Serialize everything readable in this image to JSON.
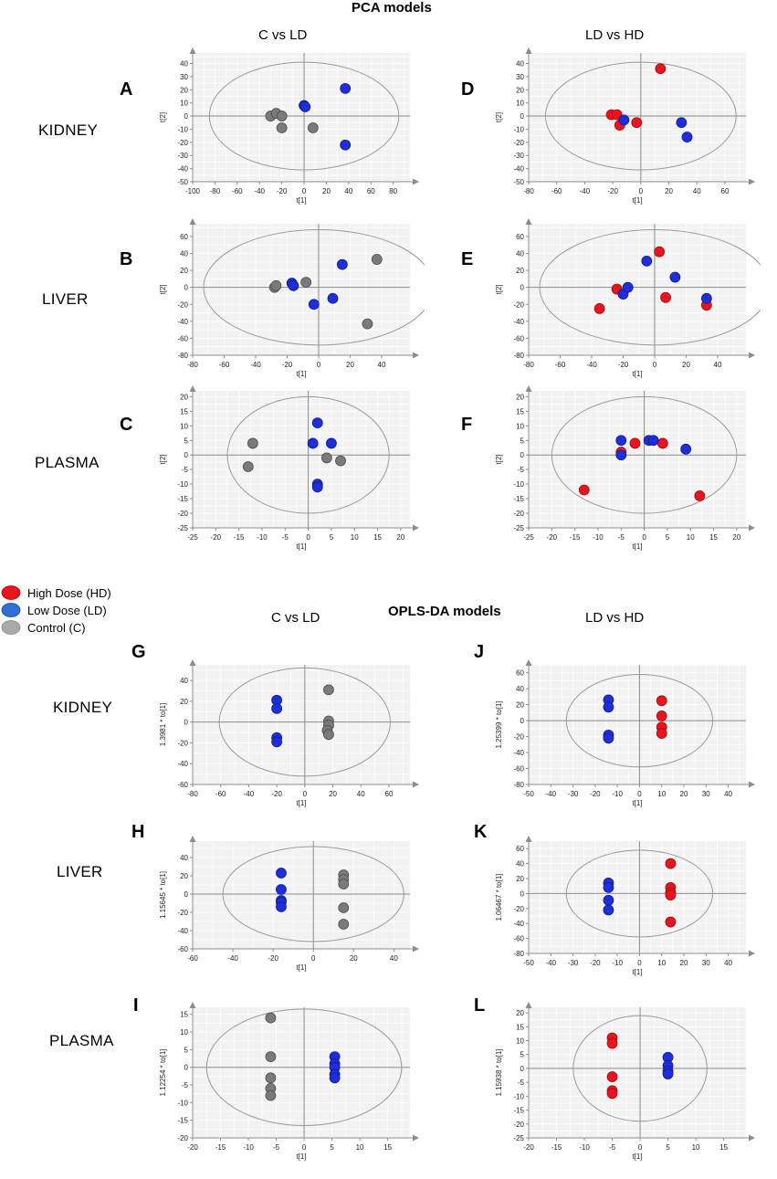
{
  "headers": {
    "pca": "PCA models",
    "oplsda": "OPLS-DA models",
    "col_left": "C vs LD",
    "col_right": "LD vs HD"
  },
  "rows": [
    "KIDNEY",
    "LIVER",
    "PLASMA"
  ],
  "legend": [
    {
      "label": "High Dose (HD)",
      "color": "#e8141e"
    },
    {
      "label": "Low Dose (LD)",
      "color": "#1e2ed8"
    },
    {
      "label": "Control (C)",
      "color": "#7a7a7a"
    }
  ],
  "colors": {
    "HD": "#e8141e",
    "LD": "#1e2ed8",
    "C": "#7a7a7a",
    "plot_bg": "#f2f2f2",
    "grid": "#ffffff",
    "axis": "#8c8c8c"
  },
  "chart_data": [
    {
      "id": "A",
      "type": "scatter",
      "model": "PCA",
      "tissue": "KIDNEY",
      "comparison": "C vs LD",
      "xlabel": "t[1]",
      "ylabel": "t[2]",
      "xlim": [
        -100,
        95
      ],
      "ylim": [
        -50,
        48
      ],
      "xticks": [
        -100,
        -80,
        -60,
        -40,
        -20,
        0,
        20,
        40,
        60,
        80
      ],
      "yticks": [
        -50,
        -40,
        -30,
        -20,
        -10,
        0,
        10,
        20,
        30,
        40
      ],
      "ellipse": {
        "rx": 85,
        "ry": 41
      },
      "series": [
        {
          "name": "Control (C)",
          "group": "C",
          "points": [
            [
              -30,
              0
            ],
            [
              -25,
              2
            ],
            [
              -20,
              0
            ],
            [
              -20,
              -9
            ],
            [
              8,
              -9
            ]
          ]
        },
        {
          "name": "Low Dose (LD)",
          "group": "LD",
          "points": [
            [
              0,
              8
            ],
            [
              1,
              7
            ],
            [
              37,
              21
            ],
            [
              37,
              -22
            ]
          ]
        }
      ]
    },
    {
      "id": "D",
      "type": "scatter",
      "model": "PCA",
      "tissue": "KIDNEY",
      "comparison": "LD vs HD",
      "xlabel": "t[1]",
      "ylabel": "t[2]",
      "xlim": [
        -80,
        75
      ],
      "ylim": [
        -50,
        48
      ],
      "xticks": [
        -80,
        -60,
        -40,
        -20,
        0,
        20,
        40,
        60
      ],
      "yticks": [
        -50,
        -40,
        -30,
        -20,
        -10,
        0,
        10,
        20,
        30,
        40
      ],
      "ellipse": {
        "rx": 68,
        "ry": 41
      },
      "series": [
        {
          "name": "High Dose (HD)",
          "group": "HD",
          "points": [
            [
              -21,
              1
            ],
            [
              -17,
              1
            ],
            [
              -15,
              -7
            ],
            [
              -3,
              -5
            ],
            [
              14,
              36
            ]
          ]
        },
        {
          "name": "Low Dose (LD)",
          "group": "LD",
          "points": [
            [
              -12,
              -3
            ],
            [
              29,
              -5
            ],
            [
              33,
              -16
            ]
          ]
        }
      ]
    },
    {
      "id": "B",
      "type": "scatter",
      "model": "PCA",
      "tissue": "LIVER",
      "comparison": "C vs LD",
      "xlabel": "t[1]",
      "ylabel": "t[2]",
      "xlim": [
        -80,
        58
      ],
      "ylim": [
        -80,
        75
      ],
      "xticks": [
        -80,
        -60,
        -40,
        -20,
        0,
        20,
        40
      ],
      "yticks": [
        -80,
        -60,
        -40,
        -20,
        0,
        20,
        40,
        60
      ],
      "ellipse": {
        "rx": 73,
        "ry": 68
      },
      "series": [
        {
          "name": "Control (C)",
          "group": "C",
          "points": [
            [
              -28,
              0
            ],
            [
              -27,
              2
            ],
            [
              -8,
              6
            ],
            [
              37,
              33
            ],
            [
              31,
              -43
            ]
          ]
        },
        {
          "name": "Low Dose (LD)",
          "group": "LD",
          "points": [
            [
              -17,
              5
            ],
            [
              -16,
              2
            ],
            [
              -3,
              -20
            ],
            [
              9,
              -13
            ],
            [
              15,
              27
            ]
          ]
        }
      ]
    },
    {
      "id": "E",
      "type": "scatter",
      "model": "PCA",
      "tissue": "LIVER",
      "comparison": "LD vs HD",
      "xlabel": "t[1]",
      "ylabel": "t[2]",
      "xlim": [
        -80,
        58
      ],
      "ylim": [
        -80,
        75
      ],
      "xticks": [
        -80,
        -60,
        -40,
        -20,
        0,
        20,
        40
      ],
      "yticks": [
        -80,
        -60,
        -40,
        -20,
        0,
        20,
        40,
        60
      ],
      "ellipse": {
        "rx": 73,
        "ry": 68
      },
      "series": [
        {
          "name": "High Dose (HD)",
          "group": "HD",
          "points": [
            [
              -35,
              -25
            ],
            [
              -24,
              -2
            ],
            [
              3,
              42
            ],
            [
              7,
              -12
            ],
            [
              33,
              -21
            ]
          ]
        },
        {
          "name": "Low Dose (LD)",
          "group": "LD",
          "points": [
            [
              -20,
              -8
            ],
            [
              -17,
              0
            ],
            [
              -5,
              31
            ],
            [
              13,
              12
            ],
            [
              33,
              -13
            ]
          ]
        }
      ]
    },
    {
      "id": "C",
      "type": "scatter",
      "model": "PCA",
      "tissue": "PLASMA",
      "comparison": "C vs LD",
      "xlabel": "t[1]",
      "ylabel": "t[2]",
      "xlim": [
        -25,
        22
      ],
      "ylim": [
        -25,
        22
      ],
      "xticks": [
        -25,
        -20,
        -15,
        -10,
        -5,
        0,
        5,
        10,
        15,
        20
      ],
      "yticks": [
        -25,
        -20,
        -15,
        -10,
        -5,
        0,
        5,
        10,
        15,
        20
      ],
      "ellipse": {
        "rx": 17.5,
        "ry": 20
      },
      "series": [
        {
          "name": "Control (C)",
          "group": "C",
          "points": [
            [
              -12,
              4
            ],
            [
              -13,
              -4
            ],
            [
              4,
              -1
            ],
            [
              7,
              -2
            ]
          ]
        },
        {
          "name": "Low Dose (LD)",
          "group": "LD",
          "points": [
            [
              2,
              11
            ],
            [
              1,
              4
            ],
            [
              5,
              4
            ],
            [
              2,
              -10
            ],
            [
              2,
              -11
            ]
          ]
        }
      ]
    },
    {
      "id": "F",
      "type": "scatter",
      "model": "PCA",
      "tissue": "PLASMA",
      "comparison": "LD vs HD",
      "xlabel": "t[1]",
      "ylabel": "t[2]",
      "xlim": [
        -25,
        22
      ],
      "ylim": [
        -25,
        22
      ],
      "xticks": [
        -25,
        -20,
        -15,
        -10,
        -5,
        0,
        5,
        10,
        15,
        20
      ],
      "yticks": [
        -25,
        -20,
        -15,
        -10,
        -5,
        0,
        5,
        10,
        15,
        20
      ],
      "ellipse": {
        "rx": 20,
        "ry": 20
      },
      "series": [
        {
          "name": "High Dose (HD)",
          "group": "HD",
          "points": [
            [
              -13,
              -12
            ],
            [
              -5,
              1
            ],
            [
              -2,
              4
            ],
            [
              4,
              4
            ],
            [
              12,
              -14
            ]
          ]
        },
        {
          "name": "Low Dose (LD)",
          "group": "LD",
          "points": [
            [
              -5,
              5
            ],
            [
              -5,
              0
            ],
            [
              1,
              5
            ],
            [
              2,
              5
            ],
            [
              9,
              2
            ]
          ]
        }
      ]
    },
    {
      "id": "G",
      "type": "scatter",
      "model": "OPLS-DA",
      "tissue": "KIDNEY",
      "comparison": "C vs LD",
      "xlabel": "t[1]",
      "ylabel": "1.3981 * to[1]",
      "xlim": [
        -80,
        75
      ],
      "ylim": [
        -60,
        55
      ],
      "xticks": [
        -80,
        -60,
        -40,
        -20,
        0,
        20,
        40,
        60
      ],
      "yticks": [
        -60,
        -40,
        -20,
        0,
        20,
        40
      ],
      "ellipse": {
        "rx": 61,
        "ry": 52
      },
      "series": [
        {
          "name": "Control (C)",
          "group": "C",
          "points": [
            [
              17,
              31
            ],
            [
              17,
              1
            ],
            [
              17,
              -3
            ],
            [
              16,
              -8
            ],
            [
              17,
              -12
            ]
          ]
        },
        {
          "name": "Low Dose (LD)",
          "group": "LD",
          "points": [
            [
              -20,
              21
            ],
            [
              -20,
              13
            ],
            [
              -20,
              -15
            ],
            [
              -20,
              -19
            ]
          ]
        }
      ]
    },
    {
      "id": "J",
      "type": "scatter",
      "model": "OPLS-DA",
      "tissue": "KIDNEY",
      "comparison": "LD vs HD",
      "xlabel": "t[1]",
      "ylabel": "1.25399 * to[1]",
      "xlim": [
        -50,
        48
      ],
      "ylim": [
        -80,
        70
      ],
      "xticks": [
        -50,
        -40,
        -30,
        -20,
        -10,
        0,
        10,
        20,
        30,
        40
      ],
      "yticks": [
        -80,
        -60,
        -40,
        -20,
        0,
        20,
        40,
        60
      ],
      "ellipse": {
        "rx": 33,
        "ry": 58
      },
      "series": [
        {
          "name": "High Dose (HD)",
          "group": "HD",
          "points": [
            [
              10,
              25
            ],
            [
              10,
              6
            ],
            [
              10,
              -8
            ],
            [
              10,
              -16
            ]
          ]
        },
        {
          "name": "Low Dose (LD)",
          "group": "LD",
          "points": [
            [
              -14,
              26
            ],
            [
              -14,
              17
            ],
            [
              -14,
              -18
            ],
            [
              -14,
              -22
            ]
          ]
        }
      ]
    },
    {
      "id": "H",
      "type": "scatter",
      "model": "OPLS-DA",
      "tissue": "LIVER",
      "comparison": "C vs LD",
      "xlabel": "t[1]",
      "ylabel": "1.15645 * to[1]",
      "xlim": [
        -60,
        48
      ],
      "ylim": [
        -60,
        58
      ],
      "xticks": [
        -60,
        -40,
        -20,
        0,
        20,
        40
      ],
      "yticks": [
        -60,
        -40,
        -20,
        0,
        20,
        40
      ],
      "ellipse": {
        "rx": 45,
        "ry": 52
      },
      "series": [
        {
          "name": "Control (C)",
          "group": "C",
          "points": [
            [
              15,
              21
            ],
            [
              15,
              16
            ],
            [
              15,
              11
            ],
            [
              15,
              -15
            ],
            [
              15,
              -33
            ]
          ]
        },
        {
          "name": "Low Dose (LD)",
          "group": "LD",
          "points": [
            [
              -16,
              23
            ],
            [
              -16,
              5
            ],
            [
              -16,
              -7
            ],
            [
              -16,
              -9
            ],
            [
              -16,
              -14
            ]
          ]
        }
      ]
    },
    {
      "id": "K",
      "type": "scatter",
      "model": "OPLS-DA",
      "tissue": "LIVER",
      "comparison": "LD vs HD",
      "xlabel": "t[1]",
      "ylabel": "1.06467 * to[1]",
      "xlim": [
        -50,
        48
      ],
      "ylim": [
        -80,
        70
      ],
      "xticks": [
        -50,
        -40,
        -30,
        -20,
        -10,
        0,
        10,
        20,
        30,
        40
      ],
      "yticks": [
        -80,
        -60,
        -40,
        -20,
        0,
        20,
        40,
        60
      ],
      "ellipse": {
        "rx": 33,
        "ry": 58
      },
      "series": [
        {
          "name": "High Dose (HD)",
          "group": "HD",
          "points": [
            [
              14,
              40
            ],
            [
              14,
              8
            ],
            [
              14,
              1
            ],
            [
              14,
              -2
            ],
            [
              14,
              -38
            ]
          ]
        },
        {
          "name": "Low Dose (LD)",
          "group": "LD",
          "points": [
            [
              -14,
              14
            ],
            [
              -14,
              8
            ],
            [
              -14,
              -9
            ],
            [
              -14,
              -22
            ]
          ]
        }
      ]
    },
    {
      "id": "I",
      "type": "scatter",
      "model": "OPLS-DA",
      "tissue": "PLASMA",
      "comparison": "C vs LD",
      "xlabel": "t[1]",
      "ylabel": "1.12254 * to[1]",
      "xlim": [
        -20,
        19
      ],
      "ylim": [
        -20,
        17
      ],
      "xticks": [
        -20,
        -15,
        -10,
        -5,
        0,
        5,
        10,
        15
      ],
      "yticks": [
        -20,
        -15,
        -10,
        -5,
        0,
        5,
        10,
        15
      ],
      "ellipse": {
        "rx": 17.5,
        "ry": 16.5
      },
      "series": [
        {
          "name": "Control (C)",
          "group": "C",
          "points": [
            [
              -6,
              14
            ],
            [
              -6,
              3
            ],
            [
              -6,
              -3
            ],
            [
              -6,
              -6
            ],
            [
              -6,
              -8
            ]
          ]
        },
        {
          "name": "Low Dose (LD)",
          "group": "LD",
          "points": [
            [
              5.5,
              3
            ],
            [
              5.5,
              1
            ],
            [
              5.5,
              0
            ],
            [
              5.5,
              -2
            ],
            [
              5.5,
              -3
            ]
          ]
        }
      ]
    },
    {
      "id": "L",
      "type": "scatter",
      "model": "OPLS-DA",
      "tissue": "PLASMA",
      "comparison": "LD vs HD",
      "xlabel": "t[1]",
      "ylabel": "1.15938 * to[1]",
      "xlim": [
        -20,
        19
      ],
      "ylim": [
        -25,
        22
      ],
      "xticks": [
        -20,
        -15,
        -10,
        -5,
        0,
        5,
        10,
        15
      ],
      "yticks": [
        -25,
        -20,
        -15,
        -10,
        -5,
        0,
        5,
        10,
        15,
        20
      ],
      "ellipse": {
        "rx": 12,
        "ry": 19
      },
      "series": [
        {
          "name": "High Dose (HD)",
          "group": "HD",
          "points": [
            [
              -5,
              11
            ],
            [
              -5,
              9
            ],
            [
              -5,
              -3
            ],
            [
              -5,
              -8
            ],
            [
              -5,
              -9
            ]
          ]
        },
        {
          "name": "Low Dose (LD)",
          "group": "LD",
          "points": [
            [
              5,
              4
            ],
            [
              5,
              1
            ],
            [
              5,
              -1
            ],
            [
              5,
              -2
            ]
          ]
        }
      ]
    }
  ]
}
